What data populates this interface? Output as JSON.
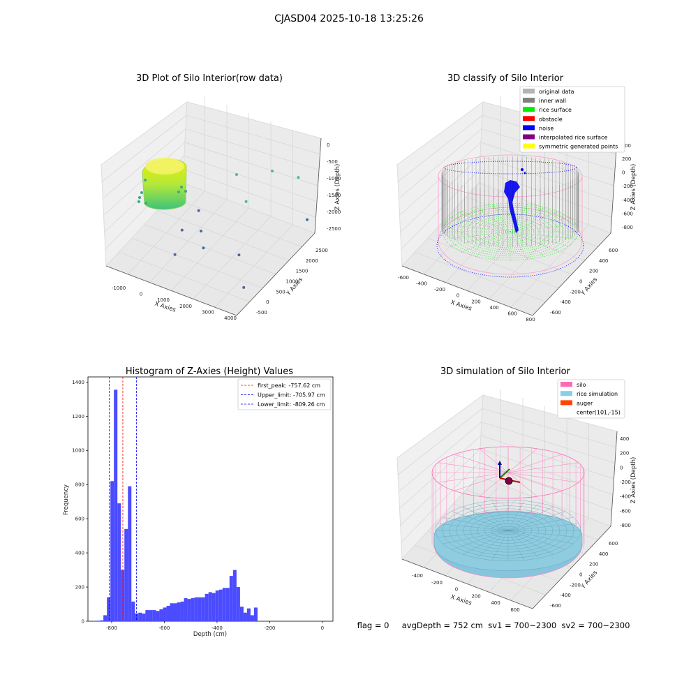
{
  "suptitle": "CJASD04 2025-10-18 13:25:26",
  "status_line": "flag = 0     avgDepth = 752 cm  sv1 = 700~2300  sv2 = 700~2300",
  "chart_data": [
    {
      "type": "scatter",
      "title": "3D Plot of Silo Interior(row data)",
      "xlabel": "X Axies",
      "ylabel": "Y Axies",
      "zlabel": "Z Axies (Depth)",
      "x_ticks": [
        "-1000",
        "0",
        "1000",
        "2000",
        "3000",
        "4000"
      ],
      "y_ticks": [
        "-500",
        "0",
        "500",
        "1000",
        "1500",
        "2000",
        "2500"
      ],
      "z_ticks": [
        "0",
        "-500",
        "-1000",
        "-1500",
        "-2000",
        "-2500"
      ],
      "outlier_points": [
        {
          "x": 1500,
          "y": 2100,
          "z": -1300
        },
        {
          "x": 2600,
          "y": 2500,
          "z": -1200
        },
        {
          "x": 2300,
          "y": 1700,
          "z": -1600
        },
        {
          "x": 3600,
          "y": 2600,
          "z": -1200
        },
        {
          "x": 4100,
          "y": 2600,
          "z": -2400
        },
        {
          "x": 2800,
          "y": 900,
          "z": -2500
        },
        {
          "x": 900,
          "y": 1100,
          "z": -1800
        },
        {
          "x": 1200,
          "y": 900,
          "z": -2200
        },
        {
          "x": 1400,
          "y": 800,
          "z": -2600
        },
        {
          "x": 400,
          "y": 900,
          "z": -2400
        },
        {
          "x": 700,
          "y": 300,
          "z": -2600
        },
        {
          "x": 3700,
          "y": 200,
          "z": -2700
        }
      ]
    },
    {
      "type": "scatter",
      "title": "3D classify of Silo Interior",
      "xlabel": "X Axies",
      "ylabel": "Y Axies",
      "zlabel": "Z Axies (Depth)",
      "x_ticks": [
        "-600",
        "-400",
        "-200",
        "0",
        "200",
        "400",
        "600",
        "800"
      ],
      "y_ticks": [
        "-600",
        "-400",
        "-200",
        "0",
        "200",
        "400",
        "600"
      ],
      "z_ticks": [
        "200",
        "0",
        "-200",
        "-400",
        "-600",
        "-800"
      ],
      "z_partial_tick": "00",
      "legend": [
        {
          "label": "original data",
          "color": "#b4b4b4"
        },
        {
          "label": "inner wall",
          "color": "#808080"
        },
        {
          "label": "rice surface",
          "color": "#00ee00"
        },
        {
          "label": "obstacle",
          "color": "#ff0000"
        },
        {
          "label": "noise",
          "color": "#0000ff"
        },
        {
          "label": "interpolated rice surface",
          "color": "#800080"
        },
        {
          "label": "symmetric generated points",
          "color": "#ffff00"
        }
      ]
    },
    {
      "type": "bar",
      "title": "Histogram of Z-Axies (Height) Values",
      "xlabel": "Depth (cm)",
      "ylabel": "Frequency",
      "xlim": [
        -890,
        40
      ],
      "ylim": [
        0,
        1430
      ],
      "x_ticks": [
        -800,
        -600,
        -400,
        -200,
        0
      ],
      "y_ticks": [
        0,
        200,
        400,
        600,
        800,
        1000,
        1200,
        1400
      ],
      "bar_color": "#4b4bff",
      "bins": {
        "start": -858,
        "width": 13.3,
        "values": [
          3,
          5,
          35,
          140,
          820,
          1355,
          690,
          300,
          540,
          790,
          115,
          45,
          50,
          45,
          65,
          65,
          65,
          60,
          70,
          80,
          90,
          105,
          105,
          110,
          115,
          135,
          130,
          135,
          140,
          140,
          140,
          160,
          170,
          165,
          180,
          185,
          195,
          195,
          265,
          300,
          200,
          85,
          50,
          75,
          35,
          80
        ]
      },
      "vlines": [
        {
          "label": "first_peak: -757.62 cm",
          "x": -757.62,
          "color": "#ff0000"
        },
        {
          "label": "Upper_limit: -705.97 cm",
          "x": -705.97,
          "color": "#0000ff"
        },
        {
          "label": "Lower_limit: -809.26 cm",
          "x": -809.26,
          "color": "#0000ff"
        }
      ]
    },
    {
      "type": "scatter",
      "title": "3D simulation of Silo Interior",
      "xlabel": "X Axies",
      "ylabel": "Y Axies",
      "zlabel": "Z Axies (Depth)",
      "x_ticks": [
        "-400",
        "-200",
        "0",
        "200",
        "400",
        "600"
      ],
      "y_ticks": [
        "-600",
        "-400",
        "-200",
        "0",
        "200",
        "400",
        "600"
      ],
      "z_ticks": [
        "400",
        "200",
        "0",
        "-200",
        "-400",
        "-600",
        "-800"
      ],
      "legend": [
        {
          "label": "silo",
          "color": "#ff69b4"
        },
        {
          "label": "rice simulation",
          "color": "#87ceeb"
        },
        {
          "label": "auger",
          "color": "#ff4500"
        },
        {
          "label": "center(101,-15)",
          "color": ""
        }
      ]
    }
  ]
}
